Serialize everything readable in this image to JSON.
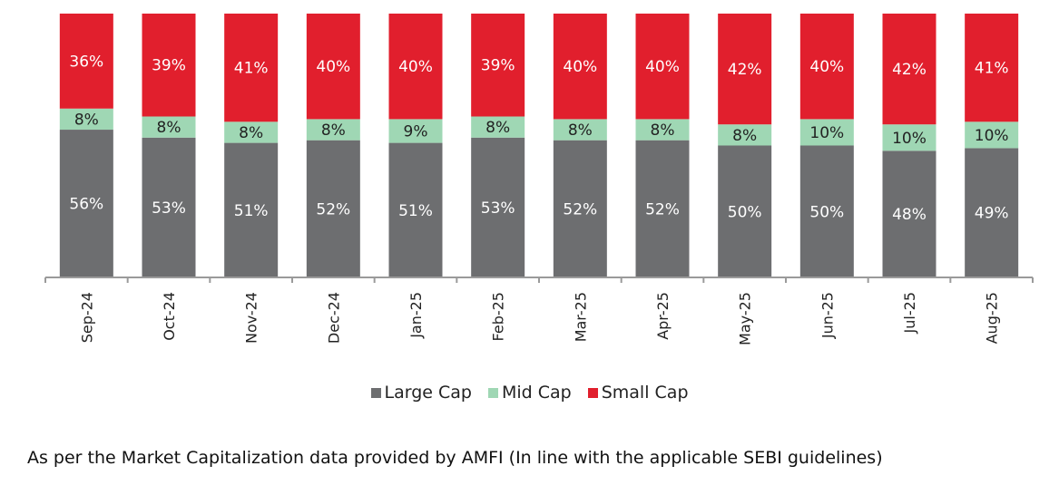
{
  "chart_data": {
    "type": "bar",
    "stacked": true,
    "percent_stacked": true,
    "categories": [
      "Sep-24",
      "Oct-24",
      "Nov-24",
      "Dec-24",
      "Jan-25",
      "Feb-25",
      "Mar-25",
      "Apr-25",
      "May-25",
      "Jun-25",
      "Jul-25",
      "Aug-25"
    ],
    "series": [
      {
        "name": "Large Cap",
        "color": "#6d6e70",
        "label_color": "#ffffff",
        "values": [
          56,
          53,
          51,
          52,
          51,
          53,
          52,
          52,
          50,
          50,
          48,
          49
        ],
        "labels": [
          "56%",
          "53%",
          "51%",
          "52%",
          "51%",
          "53%",
          "52%",
          "52%",
          "50%",
          "50%",
          "48%",
          "49%"
        ]
      },
      {
        "name": "Mid Cap",
        "color": "#9fd7b4",
        "label_color": "#222222",
        "values": [
          8,
          8,
          8,
          8,
          9,
          8,
          8,
          8,
          8,
          10,
          10,
          10
        ],
        "labels": [
          "8%",
          "8%",
          "8%",
          "8%",
          "9%",
          "8%",
          "8%",
          "8%",
          "8%",
          "10%",
          "10%",
          "10%"
        ]
      },
      {
        "name": "Small Cap",
        "color": "#e11f2d",
        "label_color": "#ffffff",
        "values": [
          36,
          39,
          41,
          40,
          40,
          39,
          40,
          40,
          42,
          40,
          42,
          41
        ],
        "labels": [
          "36%",
          "39%",
          "41%",
          "40%",
          "40%",
          "39%",
          "40%",
          "40%",
          "42%",
          "40%",
          "42%",
          "41%"
        ]
      }
    ],
    "ylim": [
      0,
      100
    ],
    "grid": false,
    "legend_position": "bottom"
  },
  "legend": {
    "large_cap": "Large Cap",
    "mid_cap": "Mid Cap",
    "small_cap": "Small Cap"
  },
  "footnote": "As per the Market Capitalization data provided by AMFI (In line with the applicable SEBI guidelines)"
}
